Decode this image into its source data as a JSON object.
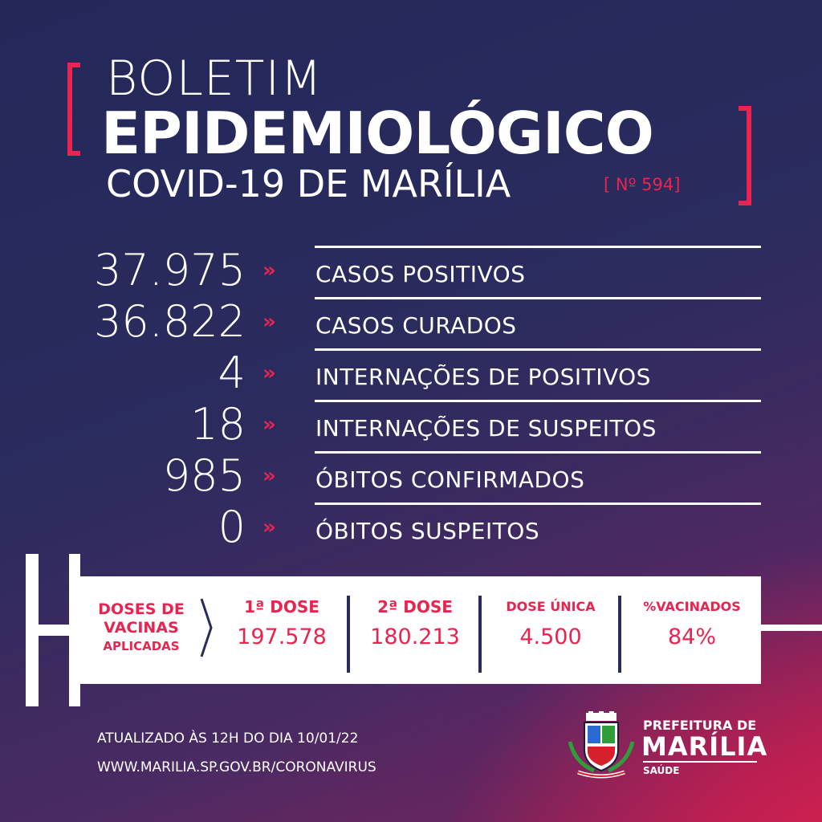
{
  "header": {
    "line1": "BOLETIM",
    "line2": "EPIDEMIOLÓGICO",
    "line3": "COVID-19 DE MARÍLIA",
    "number": "[ Nº 594]"
  },
  "stats": [
    {
      "value": "37.975",
      "label": "CASOS POSITIVOS"
    },
    {
      "value": "36.822",
      "label": "CASOS CURADOS"
    },
    {
      "value": "4",
      "label": "INTERNAÇÕES DE POSITIVOS"
    },
    {
      "value": "18",
      "label": "INTERNAÇÕES DE SUSPEITOS"
    },
    {
      "value": "985",
      "label": "ÓBITOS CONFIRMADOS"
    },
    {
      "value": "0",
      "label": "ÓBITOS SUSPEITOS"
    }
  ],
  "chevron": "»",
  "vaccines": {
    "title_line1": "DOSES DE",
    "title_line2": "VACINAS",
    "title_line3": "APLICADAS",
    "first_dose_label": "1ª DOSE",
    "first_dose_value": "197.578",
    "second_dose_label": "2ª DOSE",
    "second_dose_value": "180.213",
    "single_dose_label": "DOSE ÚNICA",
    "single_dose_value": "4.500",
    "vaccinated_label": "%VACINADOS",
    "vaccinated_value": "84%"
  },
  "footer": {
    "updated": "ATUALIZADO ÀS 12H DO DIA 10/01/22",
    "url": "WWW.MARILIA.SP.GOV.BR/CORONAVIRUS"
  },
  "logo": {
    "line1": "PREFEITURA DE",
    "line2": "MARÍLIA",
    "line3": "SAÚDE"
  },
  "colors": {
    "accent": "#e8244f",
    "background": "#2a2c5a",
    "text": "#ffffff"
  }
}
